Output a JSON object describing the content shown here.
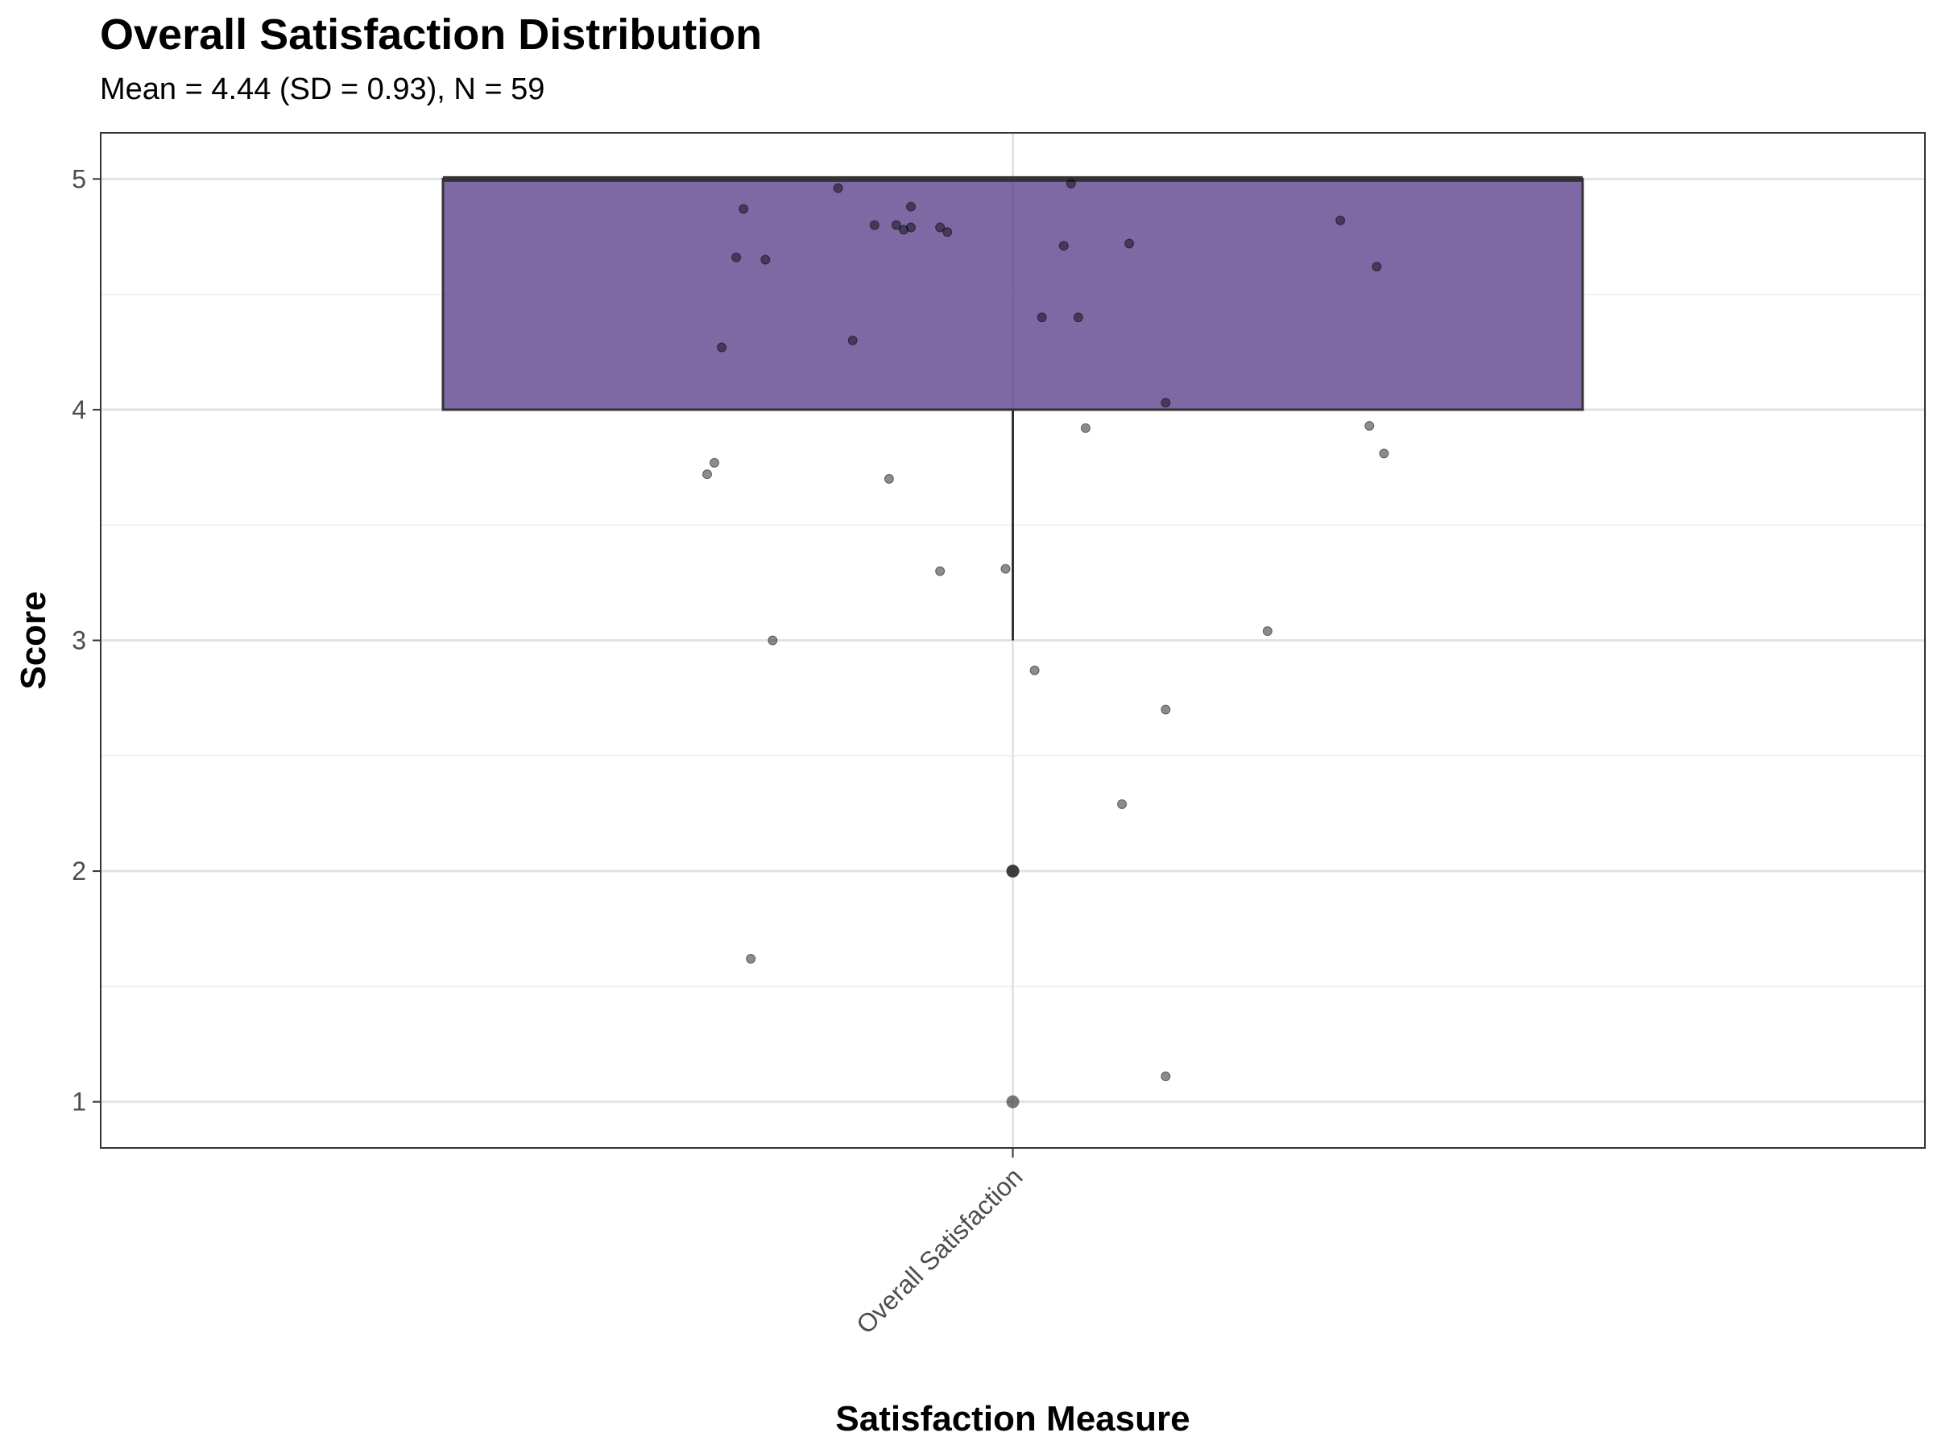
{
  "chart_data": {
    "type": "box",
    "title": "Overall Satisfaction Distribution",
    "subtitle": "Mean = 4.44 (SD = 0.93), N = 59",
    "xlabel": "Satisfaction Measure",
    "ylabel": "Score",
    "categories": [
      "Overall Satisfaction"
    ],
    "ylim": [
      0.8,
      5.2
    ],
    "yticks": [
      1,
      2,
      3,
      4,
      5
    ],
    "grid": true,
    "box": {
      "category": "Overall Satisfaction",
      "min": 3,
      "q1": 4,
      "median": 5,
      "q3": 5,
      "max": 5,
      "fill": "#5b3f8c",
      "outliers": [
        2,
        1
      ]
    },
    "jitter_points": [
      {
        "x": -0.42,
        "y": 3.72
      },
      {
        "x": -0.41,
        "y": 3.77
      },
      {
        "x": -0.4,
        "y": 4.27
      },
      {
        "x": -0.38,
        "y": 4.66
      },
      {
        "x": -0.37,
        "y": 4.87
      },
      {
        "x": -0.36,
        "y": 1.62
      },
      {
        "x": -0.34,
        "y": 4.65
      },
      {
        "x": -0.33,
        "y": 3.0
      },
      {
        "x": -0.24,
        "y": 4.96
      },
      {
        "x": -0.22,
        "y": 4.3
      },
      {
        "x": -0.19,
        "y": 4.8
      },
      {
        "x": -0.17,
        "y": 3.7
      },
      {
        "x": -0.16,
        "y": 4.8
      },
      {
        "x": -0.15,
        "y": 4.78
      },
      {
        "x": -0.14,
        "y": 4.88
      },
      {
        "x": -0.14,
        "y": 4.79
      },
      {
        "x": -0.1,
        "y": 4.79
      },
      {
        "x": -0.09,
        "y": 4.77
      },
      {
        "x": -0.1,
        "y": 3.3
      },
      {
        "x": -0.01,
        "y": 3.31
      },
      {
        "x": 0.03,
        "y": 2.87
      },
      {
        "x": 0.04,
        "y": 4.4
      },
      {
        "x": 0.07,
        "y": 4.71
      },
      {
        "x": 0.08,
        "y": 4.98
      },
      {
        "x": 0.09,
        "y": 4.4
      },
      {
        "x": 0.1,
        "y": 3.92
      },
      {
        "x": 0.15,
        "y": 2.29
      },
      {
        "x": 0.16,
        "y": 4.72
      },
      {
        "x": 0.21,
        "y": 4.03
      },
      {
        "x": 0.21,
        "y": 2.7
      },
      {
        "x": 0.21,
        "y": 1.11
      },
      {
        "x": 0.35,
        "y": 3.04
      },
      {
        "x": 0.45,
        "y": 4.82
      },
      {
        "x": 0.49,
        "y": 3.93
      },
      {
        "x": 0.5,
        "y": 4.62
      },
      {
        "x": 0.51,
        "y": 3.81
      }
    ]
  }
}
